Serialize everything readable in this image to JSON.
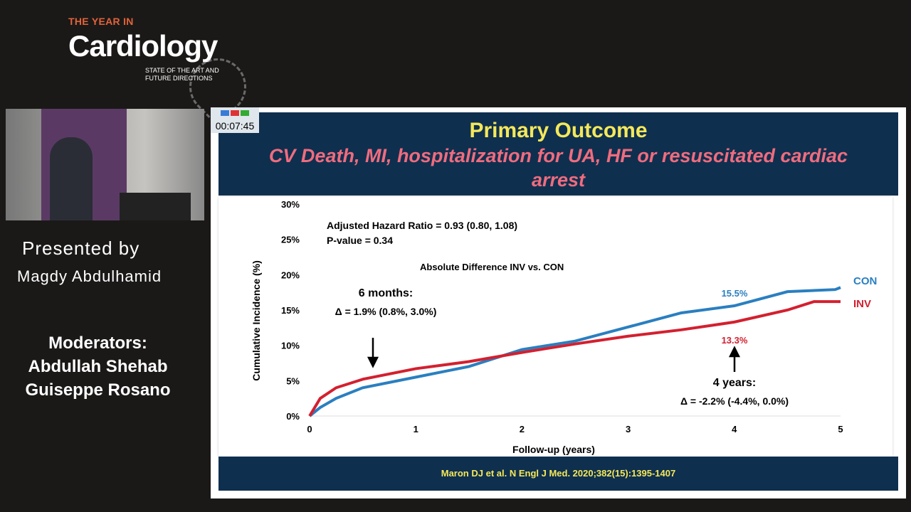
{
  "logo": {
    "top": "THE YEAR IN",
    "main": "Cardiology",
    "sub1": "STATE OF THE ART AND",
    "sub2": "FUTURE DIRECTIONS"
  },
  "presenter": {
    "label": "Presented by",
    "name": "Magdy Abdulhamid"
  },
  "moderators": {
    "label": "Moderators:",
    "names": [
      "Abdullah Shehab",
      "Guiseppe Rosano"
    ]
  },
  "timer": "00:07:45",
  "slide": {
    "title": "Primary Outcome",
    "subtitle": "CV Death, MI, hospitalization for UA, HF or resuscitated cardiac arrest",
    "citation": "Maron DJ et al. N Engl J Med. 2020;382(15):1395-1407"
  },
  "chart_data": {
    "type": "line",
    "xlabel": "Follow-up (years)",
    "ylabel": "Cumulative Incidence (%)",
    "xlim": [
      0,
      5
    ],
    "ylim": [
      0,
      30
    ],
    "xticks": [
      "0",
      "1",
      "2",
      "3",
      "4",
      "5"
    ],
    "yticks": [
      "0%",
      "5%",
      "10%",
      "15%",
      "20%",
      "25%",
      "30%"
    ],
    "grid": false,
    "annotations": {
      "hr": "Adjusted Hazard Ratio = 0.93 (0.80, 1.08)",
      "p": "P-value = 0.34",
      "absdiff": "Absolute Difference INV vs. CON",
      "m6_title": "6 months:",
      "m6_value": "Δ = 1.9% (0.8%,  3.0%)",
      "y4_title": "4 years:",
      "y4_value": "Δ = -2.2% (-4.4%,  0.0%)",
      "con_label": "15.5%",
      "inv_label": "13.3%"
    },
    "series": [
      {
        "name": "CON",
        "color": "#2a7fc0",
        "x": [
          0,
          0.1,
          0.25,
          0.5,
          1,
          1.5,
          2,
          2.5,
          3,
          3.5,
          4,
          4.5,
          4.95,
          5
        ],
        "y": [
          0,
          1.2,
          2.5,
          4,
          5.5,
          7,
          9.4,
          10.6,
          12.6,
          14.6,
          15.6,
          17.6,
          17.9,
          18.2
        ]
      },
      {
        "name": "INV",
        "color": "#d3202f",
        "x": [
          0,
          0.1,
          0.25,
          0.5,
          1,
          1.5,
          2,
          2.5,
          3,
          3.5,
          4,
          4.5,
          4.75,
          5
        ],
        "y": [
          0,
          2.5,
          4,
          5.2,
          6.7,
          7.7,
          9,
          10.2,
          11.3,
          12.2,
          13.3,
          15,
          16.2,
          16.2
        ]
      }
    ]
  }
}
